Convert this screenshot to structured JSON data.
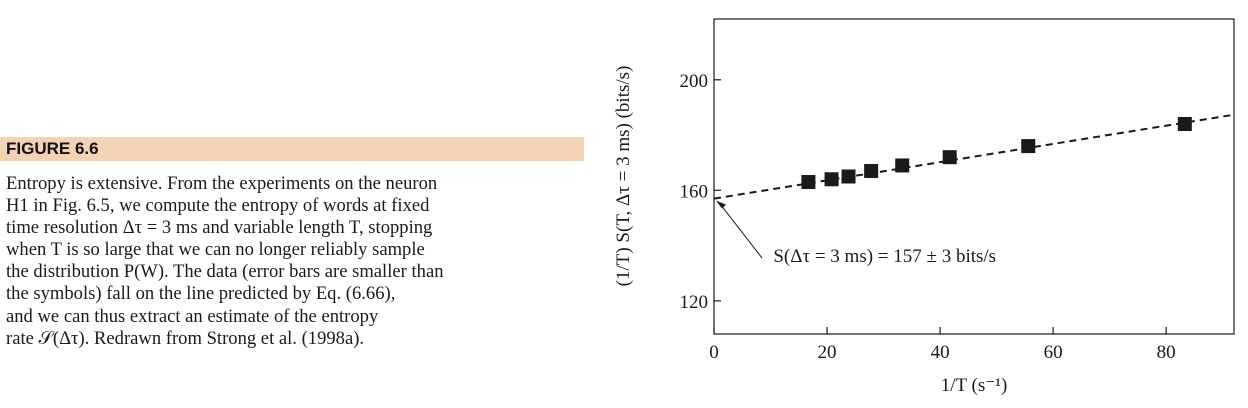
{
  "caption": {
    "label": "FIGURE 6.6",
    "lines": [
      "Entropy is extensive. From the experiments on the neuron",
      "H1 in Fig. 6.5, we compute the entropy of words at fixed",
      "time resolution Δτ = 3 ms and variable length T, stopping",
      "when T is so large that we can no longer reliably sample",
      "the distribution P(W). The data (error bars are smaller than",
      "the symbols) fall on the line predicted by Eq. (6.66),",
      "and we can thus extract an estimate of the entropy",
      "rate 𝒮(Δτ). Redrawn from Strong et al. (1998a)."
    ]
  },
  "chart_data": {
    "type": "scatter",
    "xlabel": "1/T (s⁻¹)",
    "ylabel": "(1/T) S(T, Δτ = 3 ms) (bits/s)",
    "xlim": [
      0,
      92
    ],
    "ylim": [
      108,
      222
    ],
    "xticks": [
      0,
      20,
      40,
      60,
      80
    ],
    "yticks": [
      120,
      160,
      200
    ],
    "grid": false,
    "series": [
      {
        "points": [
          {
            "x": 16.7,
            "y": 163
          },
          {
            "x": 20.8,
            "y": 164
          },
          {
            "x": 23.8,
            "y": 165
          },
          {
            "x": 27.8,
            "y": 167
          },
          {
            "x": 33.3,
            "y": 169
          },
          {
            "x": 41.7,
            "y": 172
          },
          {
            "x": 55.6,
            "y": 176
          },
          {
            "x": 83.3,
            "y": 184
          }
        ]
      }
    ],
    "fit_line": {
      "intercept": 157,
      "slope": 0.33,
      "x_range": [
        0,
        92
      ]
    },
    "annotation": {
      "text": "S(Δτ = 3 ms) = 157 ± 3 bits/s",
      "points_to": {
        "x": 0,
        "y": 157
      }
    }
  }
}
